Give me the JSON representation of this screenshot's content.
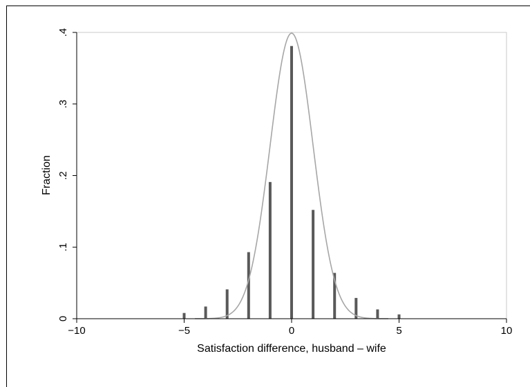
{
  "chart_data": {
    "type": "bar",
    "xlabel": "Satisfaction difference, husband – wife",
    "ylabel": "Fraction",
    "xlim": [
      -10,
      10
    ],
    "ylim": [
      0,
      0.4
    ],
    "x_ticks": [
      -10,
      -5,
      0,
      5,
      10
    ],
    "x_tick_labels": [
      "−10",
      "−5",
      "0",
      "5",
      "10"
    ],
    "y_ticks": [
      0,
      0.1,
      0.2,
      0.3,
      0.4
    ],
    "y_tick_labels": [
      "0",
      ".1",
      ".2",
      ".3",
      ".4"
    ],
    "grid": false,
    "legend": "none",
    "bar_color": "#595959",
    "curve_color": "#a6a6a6",
    "bars": {
      "x": [
        -5,
        -4,
        -3,
        -2,
        -1,
        0,
        1,
        2,
        3,
        4,
        5
      ],
      "values": [
        0.008,
        0.017,
        0.041,
        0.093,
        0.191,
        0.381,
        0.152,
        0.064,
        0.029,
        0.013,
        0.006
      ]
    },
    "overlay_curve": {
      "type": "normal_density",
      "mean": 0,
      "sd": 1
    }
  }
}
